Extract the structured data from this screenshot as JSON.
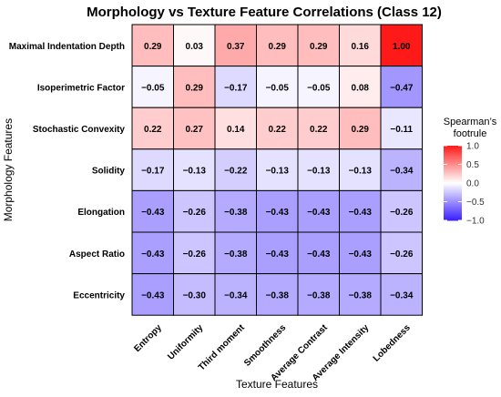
{
  "chart_data": {
    "type": "heatmap",
    "title": "Morphology vs Texture Feature Correlations (Class 12)",
    "xlabel": "Texture Features",
    "ylabel": "Morphology Features",
    "x_categories": [
      "Entropy",
      "Uniformity",
      "Third moment",
      "Smoothness",
      "Average Contrast",
      "Average Intensity",
      "Lobedness"
    ],
    "y_categories": [
      "Maximal Indentation Depth",
      "Isoperimetric Factor",
      "Stochastic Convexity",
      "Solidity",
      "Elongation",
      "Aspect Ratio",
      "Eccentricity"
    ],
    "values": [
      [
        0.29,
        0.03,
        0.37,
        0.29,
        0.29,
        0.16,
        1.0
      ],
      [
        -0.05,
        0.29,
        -0.17,
        -0.05,
        -0.05,
        0.08,
        -0.47
      ],
      [
        0.22,
        0.27,
        0.14,
        0.22,
        0.22,
        0.29,
        -0.11
      ],
      [
        -0.17,
        -0.13,
        -0.22,
        -0.13,
        -0.13,
        -0.13,
        -0.34
      ],
      [
        -0.43,
        -0.26,
        -0.38,
        -0.43,
        -0.43,
        -0.43,
        -0.26
      ],
      [
        -0.43,
        -0.26,
        -0.38,
        -0.43,
        -0.43,
        -0.43,
        -0.26
      ],
      [
        -0.43,
        -0.3,
        -0.34,
        -0.38,
        -0.38,
        -0.38,
        -0.34
      ]
    ],
    "labels": [
      [
        "0.29",
        "0.03",
        "0.37",
        "0.29",
        "0.29",
        "0.16",
        "1.00"
      ],
      [
        "−0.05",
        "0.29",
        "−0.17",
        "−0.05",
        "−0.05",
        "0.08",
        "−0.47"
      ],
      [
        "0.22",
        "0.27",
        "0.14",
        "0.22",
        "0.22",
        "0.29",
        "−0.11"
      ],
      [
        "−0.17",
        "−0.13",
        "−0.22",
        "−0.13",
        "−0.13",
        "−0.13",
        "−0.34"
      ],
      [
        "−0.43",
        "−0.26",
        "−0.38",
        "−0.43",
        "−0.43",
        "−0.43",
        "−0.26"
      ],
      [
        "−0.43",
        "−0.26",
        "−0.38",
        "−0.43",
        "−0.43",
        "−0.43",
        "−0.26"
      ],
      [
        "−0.43",
        "−0.30",
        "−0.34",
        "−0.38",
        "−0.38",
        "−0.38",
        "−0.34"
      ]
    ],
    "color_scale": {
      "low": "#3a1fff",
      "mid": "#ffffff",
      "high": "#ff1a1a",
      "limits": [
        -1,
        1
      ]
    },
    "legend": {
      "title_lines": [
        "Spearman’s",
        "footrule"
      ],
      "ticks": [
        1.0,
        0.5,
        0.0,
        -0.5,
        -1.0
      ],
      "tick_labels": [
        "1.0",
        "0.5",
        "0.0",
        "−0.5",
        "−1.0"
      ],
      "position": "right"
    }
  }
}
